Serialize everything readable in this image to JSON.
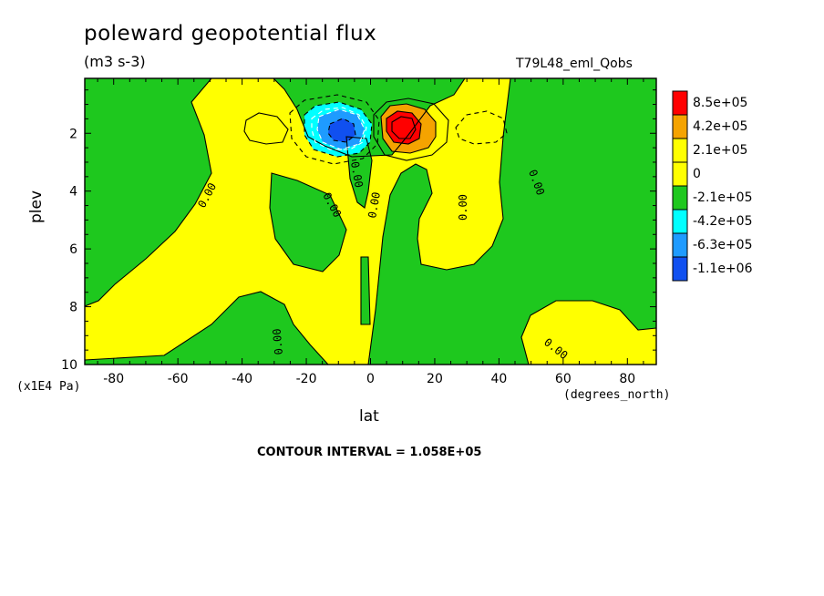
{
  "title": "poleward geopotential flux",
  "units_label": "(m3 s-3)",
  "run_label": "T79L48_eml_Qobs",
  "x_units": "(degrees_north)",
  "y_units": "(x1E4 Pa)",
  "xlabel": "lat",
  "ylabel": "plev",
  "contour_interval_text": "CONTOUR INTERVAL = 1.058E+05",
  "colors": {
    "red": "#ff0000",
    "orange": "#f5a300",
    "yellow": "#ffff00",
    "green": "#1ec81e",
    "cyan": "#00ffff",
    "mid_blue": "#1e9bff",
    "dark_blue": "#1050f0"
  },
  "chart_data": {
    "type": "contour",
    "x_ticks": [
      -80,
      -60,
      -40,
      -20,
      0,
      20,
      40,
      60,
      80
    ],
    "x_tick_labels": [
      "-80",
      "-60",
      "-40",
      "-20",
      "0",
      "20",
      "40",
      "60",
      "80"
    ],
    "y_ticks": [
      2,
      4,
      6,
      8,
      10
    ],
    "y_tick_labels": [
      "2",
      "4",
      "6",
      "8",
      "10"
    ],
    "xlim": [
      -89,
      89
    ],
    "ylim": [
      10,
      0.1
    ],
    "contour_interval": 105800,
    "zero_contour_label": "0.00",
    "legend": [
      {
        "label": "8.5e+05",
        "color": "#ff0000"
      },
      {
        "label": "4.2e+05",
        "color": "#f5a300"
      },
      {
        "label": "2.1e+05",
        "color": "#ffff00"
      },
      {
        "label": "0",
        "color": "#ffff00"
      },
      {
        "label": "-2.1e+05",
        "color": "#1ec81e"
      },
      {
        "label": "-4.2e+05",
        "color": "#00ffff"
      },
      {
        "label": "-6.3e+05",
        "color": "#1e9bff"
      },
      {
        "label": "-1.1e+06",
        "color": "#1050f0"
      }
    ],
    "features": [
      {
        "name": "negative-extremum",
        "lat": -9,
        "plev": 1.9,
        "min_level": "-1.1e+06"
      },
      {
        "name": "positive-extremum",
        "lat": 9,
        "plev": 1.9,
        "max_level": "8.5e+05"
      }
    ]
  }
}
